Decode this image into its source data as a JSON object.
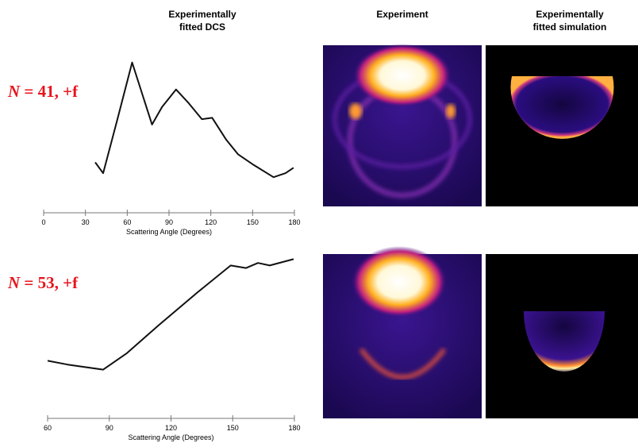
{
  "headers": {
    "dcs": [
      "Experimentally",
      "fitted DCS"
    ],
    "experiment": [
      "Experiment"
    ],
    "simulation": [
      "Experimentally",
      "fitted simulation"
    ]
  },
  "row_labels": [
    {
      "symbol": "N",
      "text": "= 41, +f"
    },
    {
      "symbol": "N",
      "text": "= 53, +f"
    }
  ],
  "chart_data": [
    {
      "type": "line",
      "xlabel": "Scattering Angle (Degrees)",
      "x": [
        37,
        42.7,
        53,
        63.5,
        71,
        77.8,
        85,
        95,
        104,
        113.6,
        121,
        130.9,
        139.5,
        150.9,
        165,
        173.7,
        179.4
      ],
      "series": [
        {
          "color": "#111111",
          "values": [
            0.15,
            0.07,
            0.47,
            0.89,
            0.65,
            0.43,
            0.56,
            0.69,
            0.59,
            0.47,
            0.48,
            0.32,
            0.21,
            0.13,
            0.04,
            0.07,
            0.11
          ]
        }
      ],
      "xlim": [
        0,
        180
      ],
      "xticks": [
        0,
        30,
        60,
        90,
        120,
        150,
        180
      ],
      "ylim": [
        0,
        1
      ]
    },
    {
      "type": "line",
      "xlabel": "Scattering Angle (Degrees)",
      "x": [
        60,
        69.7,
        87,
        98.6,
        114,
        133,
        149,
        156.5,
        162.3,
        168,
        179.6
      ],
      "series": [
        {
          "color": "#111111",
          "values": [
            0.16,
            0.13,
            0.09,
            0.22,
            0.44,
            0.7,
            0.91,
            0.89,
            0.93,
            0.91,
            0.96
          ]
        }
      ],
      "xlim": [
        60,
        180
      ],
      "xticks": [
        60,
        90,
        120,
        150,
        180
      ],
      "ylim": [
        0,
        1
      ]
    }
  ]
}
